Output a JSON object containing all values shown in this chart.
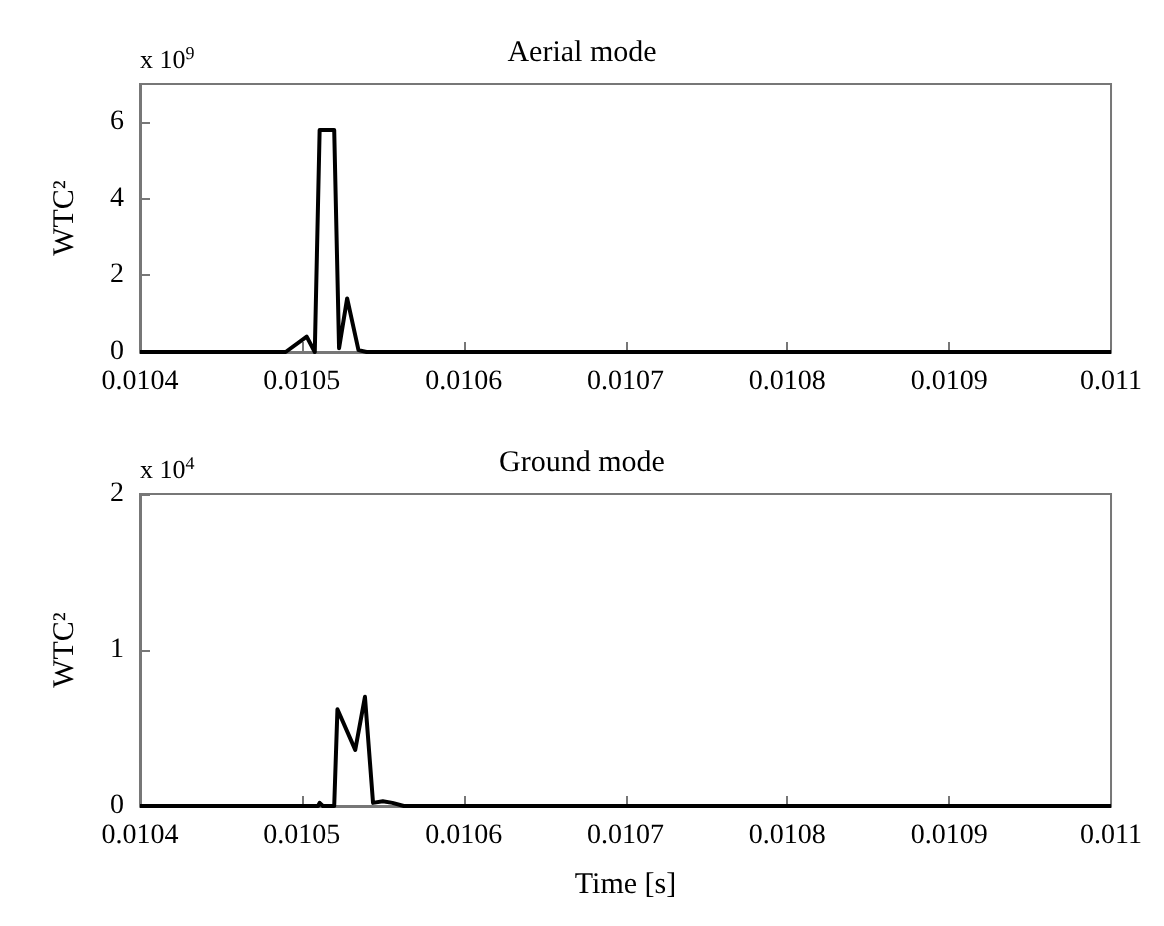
{
  "chart_data": [
    {
      "type": "line",
      "title": "Aerial mode",
      "ylabel": "WTC²",
      "annotations": [
        "x 10$^{9}$"
      ],
      "x": [
        0.0104,
        0.01049,
        0.010503,
        0.010508,
        0.010511,
        0.01052,
        0.010523,
        0.010528,
        0.010535,
        0.01054,
        0.011
      ],
      "series": [
        {
          "color": "#000000",
          "values": [
            0,
            0,
            0.4,
            0,
            5.8,
            5.8,
            0.1,
            1.4,
            0.05,
            0,
            0
          ]
        }
      ],
      "xlim": [
        0.0104,
        0.011
      ],
      "xticks": [
        0.0104,
        0.0105,
        0.0106,
        0.0107,
        0.0108,
        0.0109,
        0.011
      ],
      "ylim": [
        0,
        7
      ],
      "yticks": [
        0,
        2,
        4,
        6
      ],
      "grid": false
    },
    {
      "type": "line",
      "title": "Ground mode",
      "ylabel": "WTC²",
      "xlabel": "Time [s]",
      "annotations": [
        "x 10$^{4}$"
      ],
      "x": [
        0.0104,
        0.01051,
        0.010511,
        0.010513,
        0.01052,
        0.010522,
        0.010533,
        0.010539,
        0.010544,
        0.01055,
        0.010556,
        0.010563,
        0.011
      ],
      "series": [
        {
          "color": "#000000",
          "values": [
            0,
            0,
            0.02,
            0,
            0,
            0.62,
            0.36,
            0.7,
            0.02,
            0.03,
            0.02,
            0,
            0
          ]
        }
      ],
      "xlim": [
        0.0104,
        0.011
      ],
      "xticks": [
        0.0104,
        0.0105,
        0.0106,
        0.0107,
        0.0108,
        0.0109,
        0.011
      ],
      "ylim": [
        0,
        2
      ],
      "yticks": [
        0,
        1,
        2
      ],
      "grid": false
    }
  ]
}
